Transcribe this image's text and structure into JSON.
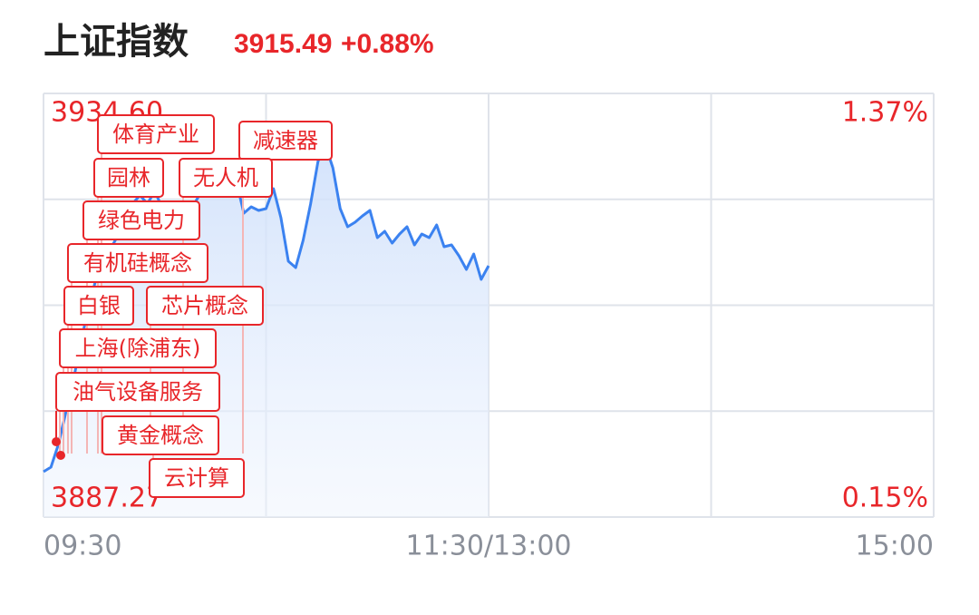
{
  "chart_data": {
    "type": "line",
    "title": "上证指数",
    "price": 3915.49,
    "change": "+0.88%",
    "xlim": [
      0,
      240
    ],
    "xticks": [
      {
        "value": 0,
        "label": "09:30"
      },
      {
        "value": 120,
        "label": "11:30/13:00"
      },
      {
        "value": 240,
        "label": "15:00"
      }
    ],
    "ylim": [
      3887.27,
      3934.6
    ],
    "yticks": [
      {
        "value": 3887.27,
        "label": "3887.27"
      },
      {
        "value": 3934.6,
        "label": "3934.60"
      }
    ],
    "y2lim": [
      0.15,
      1.37
    ],
    "y2ticks": [
      {
        "value": 0.15,
        "label": "0.15%"
      },
      {
        "value": 1.37,
        "label": "1.37%"
      }
    ],
    "grid": true,
    "series": [
      {
        "color": "#3b82f0",
        "x": [
          0,
          2,
          4,
          6,
          8,
          10,
          12,
          14,
          16,
          18,
          20,
          22,
          24,
          26,
          28,
          30,
          32,
          34,
          36,
          38,
          40,
          42,
          44,
          46,
          48,
          50,
          52,
          54,
          56,
          58,
          60,
          62,
          64,
          66,
          68,
          70,
          72,
          74,
          76,
          78,
          80,
          82,
          84,
          86,
          88,
          90,
          92,
          94,
          96,
          98,
          100,
          102,
          104,
          106,
          108,
          110,
          112,
          114,
          116,
          118,
          120
        ],
        "values": [
          3892.34,
          3892.84,
          3895.38,
          3898.92,
          3902.47,
          3906.53,
          3910.58,
          3913.62,
          3915.65,
          3917.17,
          3918.69,
          3920.21,
          3922.24,
          3923.25,
          3922.24,
          3923.76,
          3921.73,
          3920.21,
          3919.19,
          3920.72,
          3921.73,
          3923.25,
          3923.25,
          3924.26,
          3924.77,
          3925.28,
          3924.77,
          3921.22,
          3921.93,
          3921.53,
          3921.73,
          3923.96,
          3920.72,
          3915.85,
          3915.14,
          3918.18,
          3922.24,
          3927.0,
          3928.82,
          3926.29,
          3921.73,
          3919.7,
          3920.21,
          3920.92,
          3921.53,
          3918.49,
          3919.19,
          3917.88,
          3918.89,
          3919.7,
          3917.67,
          3918.89,
          3918.49,
          3919.9,
          3917.47,
          3917.67,
          3916.46,
          3914.94,
          3916.66,
          3913.82,
          3915.34
        ]
      }
    ],
    "annotations": [
      "体育产业",
      "减速器",
      "园林",
      "无人机",
      "绿色电力",
      "有机硅概念",
      "白银",
      "芯片概念",
      "上海(除浦东)",
      "油气设备服务",
      "黄金概念",
      "云计算"
    ]
  }
}
